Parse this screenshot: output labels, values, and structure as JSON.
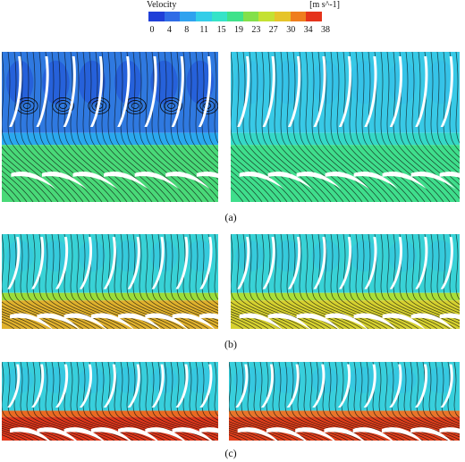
{
  "legend": {
    "title": "Velocity",
    "units": "[m s^-1]",
    "ticks": [
      "0",
      "4",
      "8",
      "11",
      "15",
      "19",
      "23",
      "27",
      "30",
      "34",
      "38"
    ],
    "colors": [
      "#1f3fd8",
      "#2f6ce6",
      "#2fa2ef",
      "#34cde8",
      "#36e3c8",
      "#3fe28a",
      "#83e04a",
      "#c4e132",
      "#e6c42a",
      "#ef7d1e",
      "#e5331b"
    ]
  },
  "figure": {
    "rows": [
      {
        "caption": "(a)",
        "left": {
          "top_color": "#2f79e0",
          "mid_color": "#2aa8ee",
          "bottom_color": "#49d978",
          "vortex": true
        },
        "right": {
          "top_color": "#38c9e6",
          "mid_color": "#35d8c7",
          "bottom_color": "#3fde8c",
          "vortex": false
        }
      },
      {
        "caption": "(b)",
        "left": {
          "top_color": "#38d2d6",
          "mid_color": "#9bdc3a",
          "bottom_color": "#e0b12c",
          "vortex": false
        },
        "right": {
          "top_color": "#38d2d6",
          "mid_color": "#a9de38",
          "bottom_color": "#d6d12f",
          "vortex": false
        }
      },
      {
        "caption": "(c)",
        "left": {
          "top_color": "#38cfdc",
          "mid_color": "#ea6a22",
          "bottom_color": "#e3381c",
          "vortex": false
        },
        "right": {
          "top_color": "#38cfdc",
          "mid_color": "#e9752a",
          "bottom_color": "#e3401c",
          "vortex": false
        }
      }
    ]
  }
}
